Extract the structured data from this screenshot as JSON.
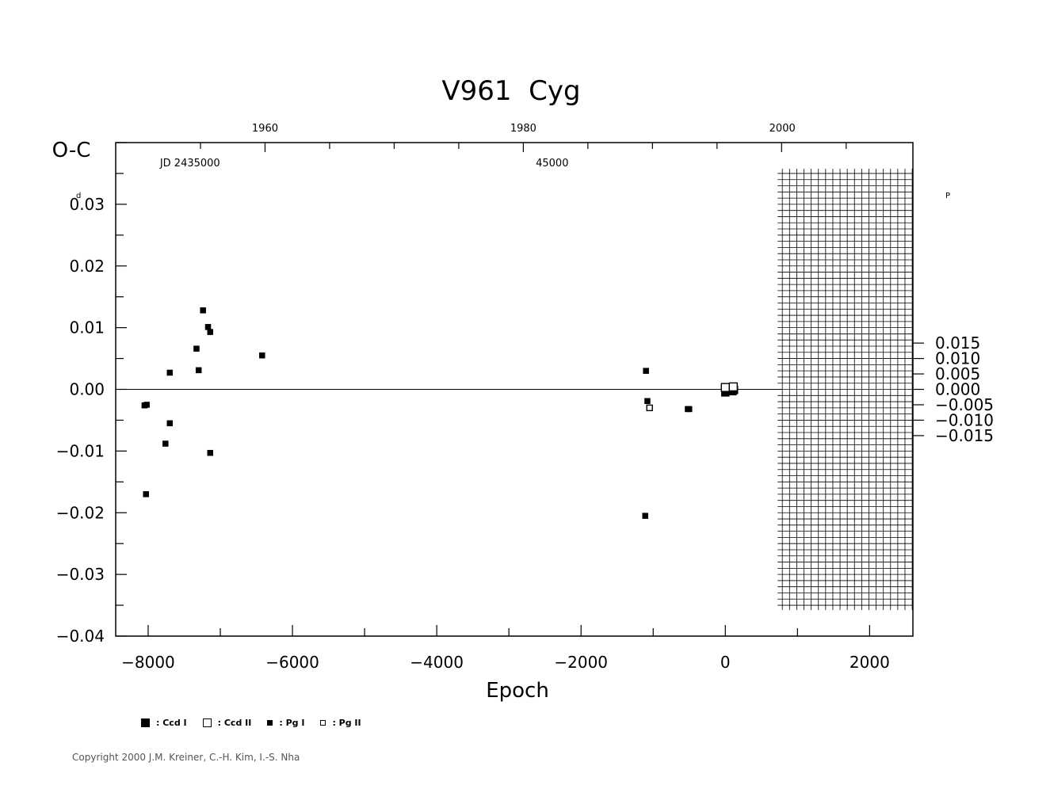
{
  "chart_data": {
    "type": "scatter",
    "title": "V961  Cyg",
    "xlabel": "Epoch",
    "ylabel": "O-C",
    "ylabel_unit_left": "d",
    "ylabel_unit_right": "P",
    "xlim": [
      -8450,
      2600
    ],
    "ylim": [
      -0.04,
      0.04
    ],
    "x_ticks": [
      -8000,
      -6000,
      -4000,
      -2000,
      0,
      2000
    ],
    "x_tick_labels": [
      "−8000",
      "−6000",
      "−4000",
      "−2000",
      "0",
      "2000"
    ],
    "y_ticks": [
      -0.04,
      -0.03,
      -0.02,
      -0.01,
      0.0,
      0.01,
      0.02,
      0.03
    ],
    "y_tick_labels": [
      "−0.04",
      "−0.03",
      "−0.02",
      "−0.01",
      "0.00",
      "0.01",
      "0.02",
      "0.03"
    ],
    "y2_ticks": [
      -0.0075,
      -0.005,
      -0.0025,
      0.0,
      0.0025,
      0.005,
      0.0075
    ],
    "y2_tick_labels": [
      "−0.015",
      "−0.010",
      "−0.005",
      "0.000",
      "0.005",
      "0.010",
      "0.015"
    ],
    "top_year_ticks": [
      {
        "label": "1960",
        "epoch": -6380
      },
      {
        "label": "1980",
        "epoch": -2800
      },
      {
        "label": "2000",
        "epoch": 790
      }
    ],
    "top_jd_labels": [
      {
        "label": "JD 2435000",
        "epoch": -7420
      },
      {
        "label": "45000",
        "epoch": -2400
      }
    ],
    "future_grid_from": 790,
    "future_grid_y": [
      -0.035,
      0.035
    ],
    "series": [
      {
        "name": "Ccd I",
        "marker": "filled-large",
        "points": [
          [
            0,
            -0.0005
          ],
          [
            100,
            -0.0003
          ],
          [
            120,
            -0.0001
          ]
        ]
      },
      {
        "name": "Ccd II",
        "marker": "open-large",
        "points": [
          [
            0,
            0.0003
          ],
          [
            110,
            0.0004
          ]
        ]
      },
      {
        "name": "Pg I",
        "marker": "filled-small",
        "points": [
          [
            -8050,
            -0.0026
          ],
          [
            -8020,
            -0.0025
          ],
          [
            -8030,
            -0.017
          ],
          [
            -7760,
            -0.0088
          ],
          [
            -7700,
            -0.0055
          ],
          [
            -7700,
            0.0027
          ],
          [
            -7330,
            0.0066
          ],
          [
            -7300,
            0.0031
          ],
          [
            -7240,
            0.0128
          ],
          [
            -7170,
            0.0101
          ],
          [
            -7140,
            0.0093
          ],
          [
            -7140,
            -0.0103
          ],
          [
            -6420,
            0.0055
          ],
          [
            -1100,
            0.003
          ],
          [
            -1080,
            -0.0019
          ],
          [
            -1110,
            -0.0205
          ],
          [
            -520,
            -0.0032
          ],
          [
            -500,
            -0.0032
          ]
        ]
      },
      {
        "name": "Pg II",
        "marker": "open-small",
        "points": [
          [
            -1050,
            -0.003
          ]
        ]
      }
    ]
  },
  "legend": {
    "ccd1": ": Ccd I",
    "ccd2": ": Ccd II",
    "pg1": ": Pg I",
    "pg2": ": Pg II"
  },
  "copyright": "Copyright 2000 J.M. Kreiner, C.-H. Kim, I.-S. Nha",
  "colors": {
    "ink": "#000000",
    "background": "#ffffff"
  }
}
